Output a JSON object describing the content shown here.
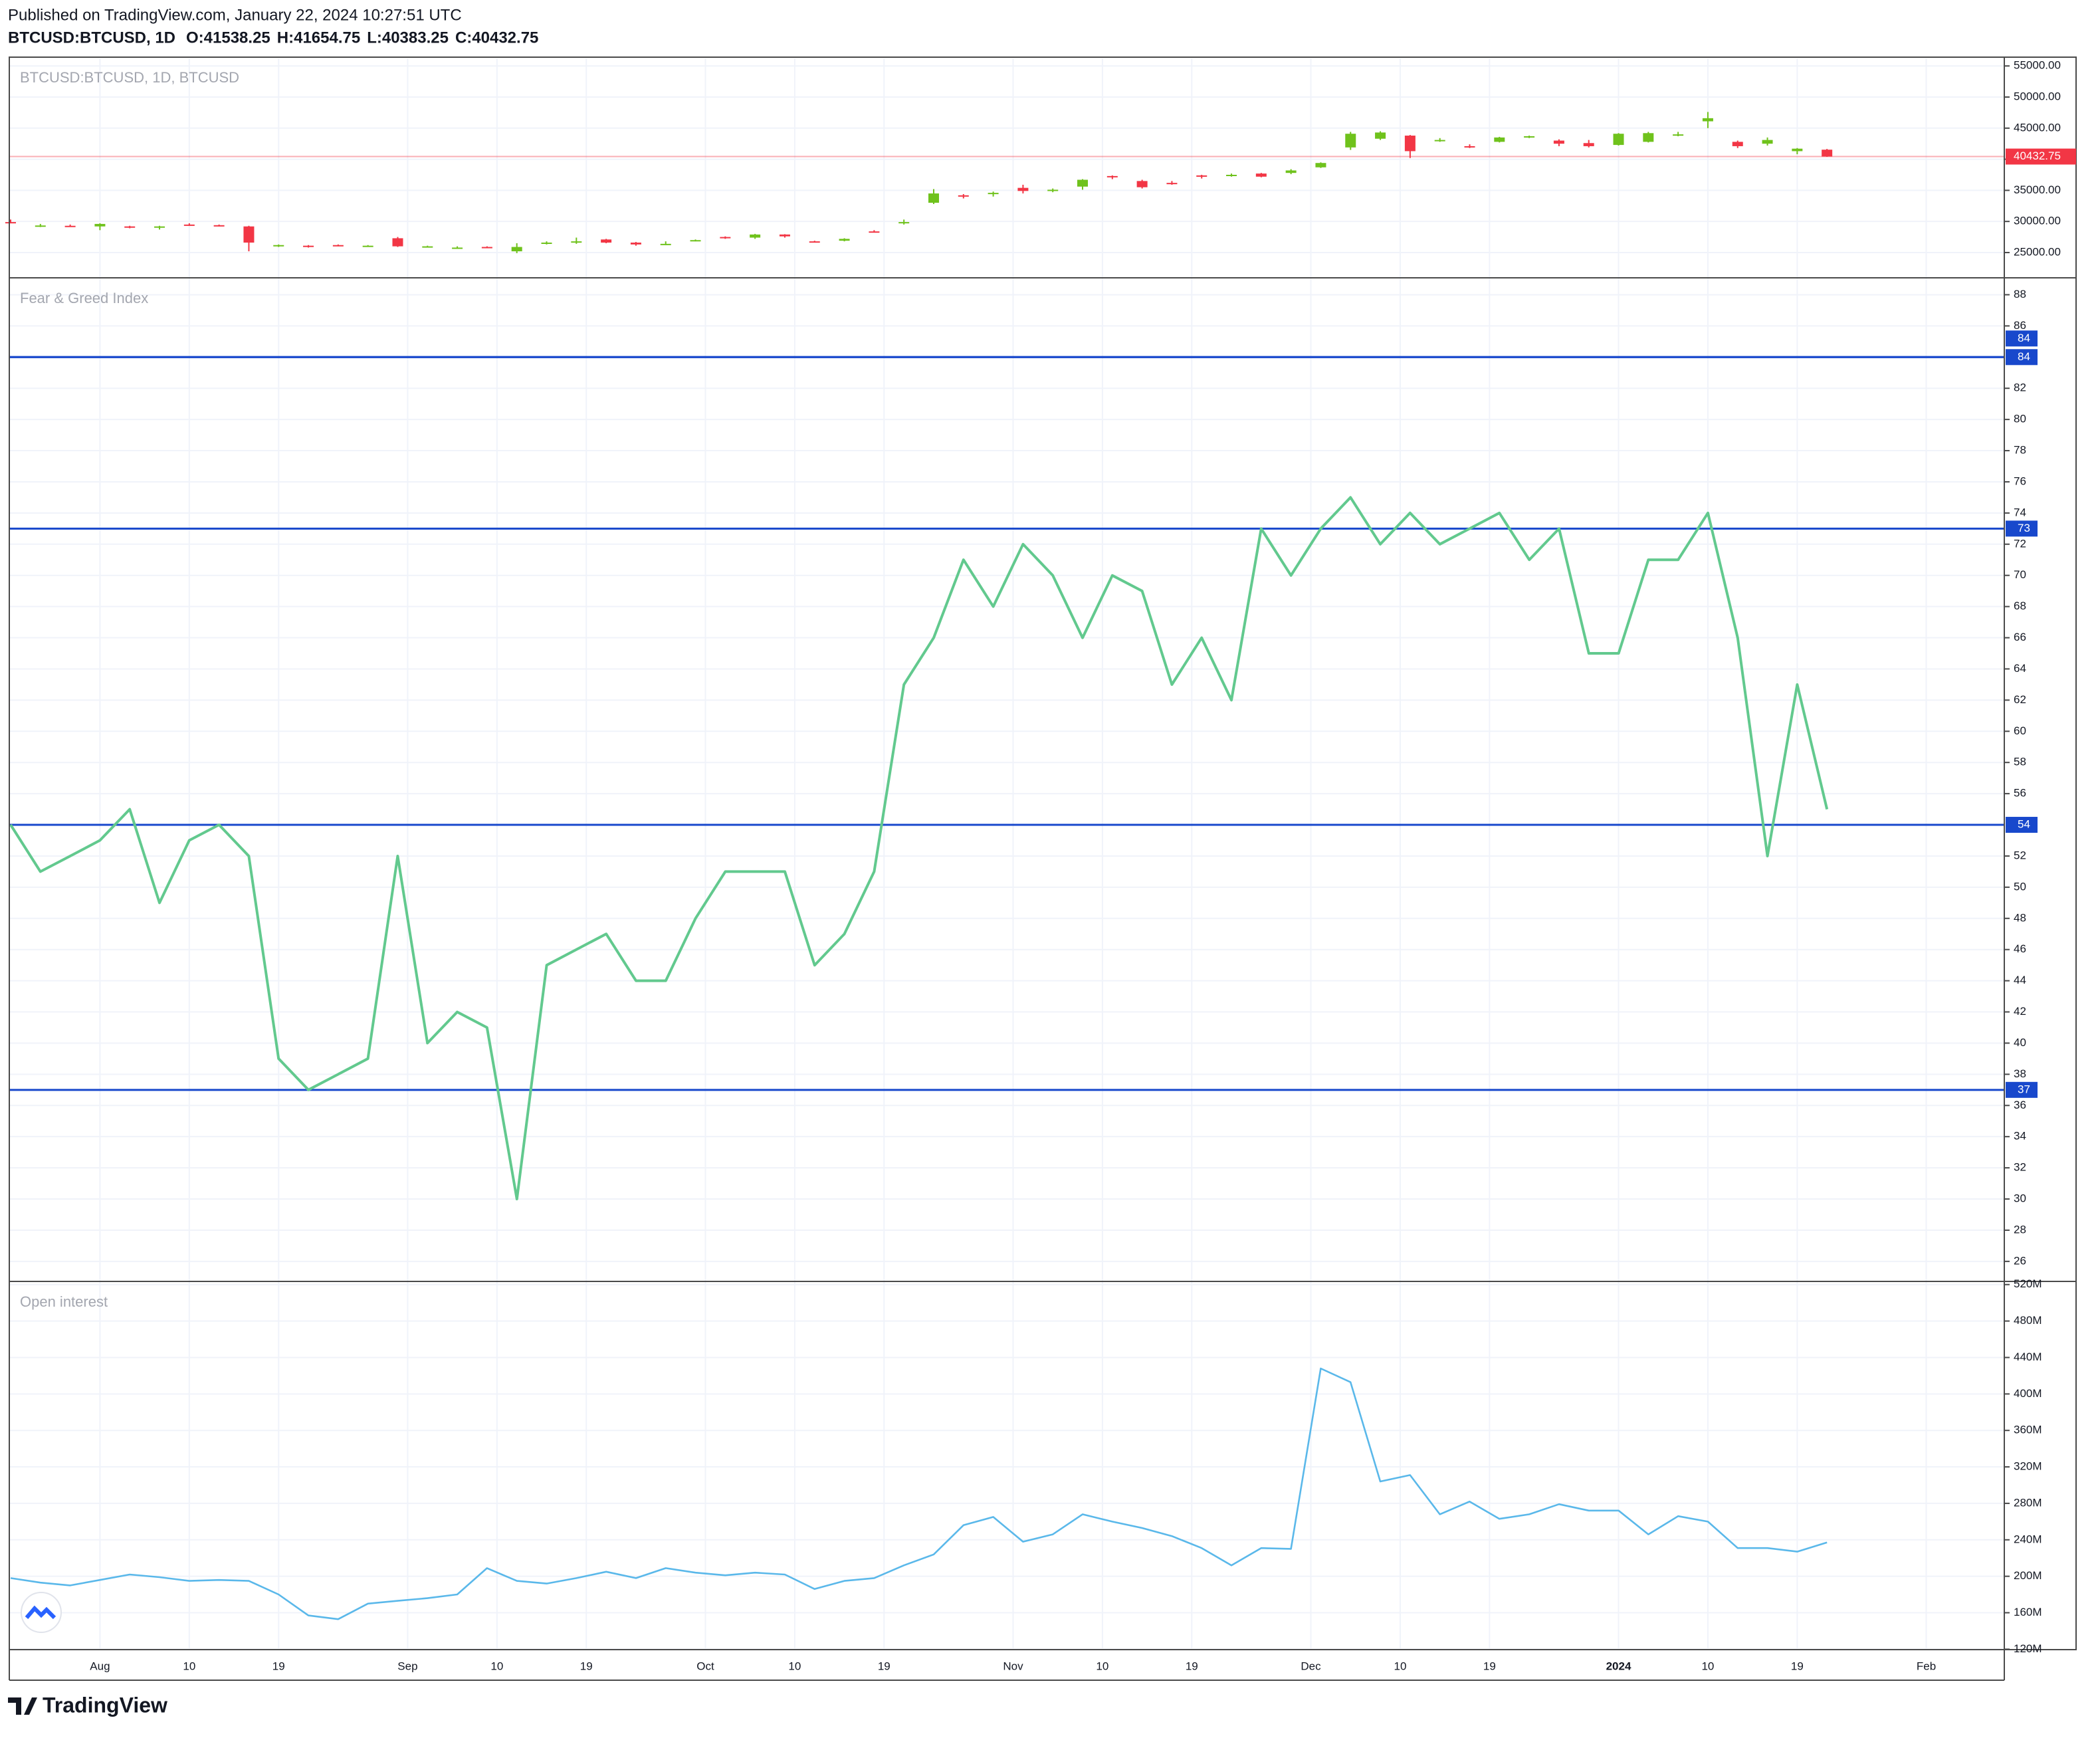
{
  "header": {
    "published": "Published on TradingView.com, January 22, 2024 10:27:51 UTC",
    "symbol": "BTCUSD:BTCUSD, 1D",
    "ohlc": [
      "O:41538.25",
      "H:41654.75",
      "L:40383.25",
      "C:40432.75"
    ]
  },
  "footer": "TradingView",
  "chart_data": [
    {
      "type": "candlestick",
      "title": "BTCUSD:BTCUSD, 1D, BTCUSD",
      "up_color": "#6fc21c",
      "down_color": "#f23645",
      "x": [
        "07-23",
        "07-26",
        "07-29",
        "08-01",
        "08-04",
        "08-07",
        "08-10",
        "08-13",
        "08-16",
        "08-19",
        "08-22",
        "08-25",
        "08-28",
        "08-31",
        "09-03",
        "09-06",
        "09-09",
        "09-12",
        "09-15",
        "09-18",
        "09-21",
        "09-24",
        "09-27",
        "09-30",
        "10-03",
        "10-06",
        "10-09",
        "10-12",
        "10-15",
        "10-18",
        "10-21",
        "10-24",
        "10-27",
        "10-30",
        "11-02",
        "11-05",
        "11-08",
        "11-11",
        "11-14",
        "11-17",
        "11-20",
        "11-23",
        "11-26",
        "11-29",
        "12-02",
        "12-05",
        "12-08",
        "12-11",
        "12-14",
        "12-17",
        "12-20",
        "12-23",
        "12-26",
        "12-29",
        "01-01",
        "01-04",
        "01-07",
        "01-10",
        "01-13",
        "01-16",
        "01-19",
        "01-22"
      ],
      "open": [
        29900,
        29200,
        29300,
        29200,
        29200,
        29100,
        29500,
        29400,
        29200,
        26100,
        26100,
        26200,
        26100,
        27300,
        25900,
        25800,
        25900,
        25200,
        26500,
        26600,
        27100,
        26600,
        26300,
        26900,
        27500,
        27400,
        27900,
        26800,
        26900,
        28400,
        29700,
        33000,
        34200,
        34500,
        35400,
        35000,
        35600,
        37300,
        36500,
        36200,
        37400,
        37300,
        37700,
        37800,
        38700,
        41900,
        43300,
        43800,
        42900,
        42100,
        42800,
        43600,
        43000,
        42600,
        42300,
        42800,
        43900,
        46100,
        42800,
        42500,
        41300,
        41538.25
      ],
      "high": [
        30300,
        29600,
        29500,
        29700,
        29300,
        29300,
        29700,
        29500,
        29300,
        26300,
        26200,
        26300,
        26200,
        27500,
        26100,
        26000,
        26000,
        26500,
        26800,
        27400,
        27200,
        26700,
        26800,
        27100,
        27600,
        28000,
        27950,
        26900,
        27300,
        28600,
        30300,
        35200,
        34400,
        34800,
        35900,
        35300,
        36800,
        37400,
        36700,
        36500,
        37500,
        37700,
        37800,
        38400,
        39500,
        44400,
        44500,
        43900,
        43400,
        42400,
        43600,
        43800,
        43200,
        43100,
        44200,
        44400,
        44400,
        47600,
        43000,
        43500,
        41800,
        41654.75
      ],
      "low": [
        29700,
        29100,
        29200,
        28600,
        28900,
        28700,
        29300,
        29200,
        25200,
        25900,
        25800,
        26000,
        26000,
        25900,
        25800,
        25700,
        25800,
        24900,
        26300,
        26400,
        26500,
        26100,
        26200,
        26800,
        27200,
        27200,
        27400,
        26600,
        26800,
        28200,
        29500,
        32800,
        33700,
        34000,
        34500,
        34700,
        35100,
        36800,
        35300,
        35900,
        36900,
        37200,
        37100,
        37600,
        38600,
        41500,
        43100,
        40200,
        42800,
        41800,
        42700,
        43400,
        42100,
        41900,
        42200,
        42700,
        43700,
        45000,
        41800,
        42200,
        40800,
        40383.25
      ],
      "close": [
        29800,
        29350,
        29250,
        29600,
        29100,
        29200,
        29400,
        29300,
        26600,
        26200,
        26050,
        26100,
        26100,
        26000,
        26000,
        25800,
        25850,
        25900,
        26600,
        26800,
        26600,
        26300,
        26400,
        27000,
        27450,
        27900,
        27600,
        26750,
        27200,
        28300,
        29900,
        34500,
        34000,
        34600,
        34900,
        35100,
        36700,
        37100,
        35500,
        36100,
        37200,
        37500,
        37200,
        38200,
        39400,
        44100,
        44300,
        41300,
        43100,
        41900,
        43500,
        43700,
        42500,
        42100,
        44100,
        44200,
        44000,
        46600,
        42100,
        43100,
        41700,
        40432.75
      ],
      "last_price": 40432.75,
      "ylim": [
        21150,
        56200
      ],
      "yticks": [
        {
          "value": 25000,
          "label": "25000.00"
        },
        {
          "value": 30000,
          "label": "30000.00"
        },
        {
          "value": 35000,
          "label": "35000.00"
        },
        {
          "value": 40000,
          "label": "40000.00"
        },
        {
          "value": 45000,
          "label": "45000.00"
        },
        {
          "value": 50000,
          "label": "50000.00"
        },
        {
          "value": 55000,
          "label": "55000.00"
        }
      ]
    },
    {
      "type": "line",
      "title": "Fear & Greed Index",
      "color": "#62c98e",
      "hline_color": "#1848cc",
      "x": [
        "07-23",
        "07-26",
        "07-29",
        "08-01",
        "08-04",
        "08-07",
        "08-10",
        "08-13",
        "08-16",
        "08-19",
        "08-22",
        "08-25",
        "08-28",
        "08-31",
        "09-03",
        "09-06",
        "09-09",
        "09-12",
        "09-15",
        "09-18",
        "09-21",
        "09-24",
        "09-27",
        "09-30",
        "10-03",
        "10-06",
        "10-09",
        "10-12",
        "10-15",
        "10-18",
        "10-21",
        "10-24",
        "10-27",
        "10-30",
        "11-02",
        "11-05",
        "11-08",
        "11-11",
        "11-14",
        "11-17",
        "11-20",
        "11-23",
        "11-26",
        "11-29",
        "12-02",
        "12-05",
        "12-08",
        "12-11",
        "12-14",
        "12-17",
        "12-20",
        "12-23",
        "12-26",
        "12-29",
        "01-01",
        "01-04",
        "01-07",
        "01-10",
        "01-13",
        "01-16",
        "01-19",
        "01-22"
      ],
      "values": [
        54,
        51,
        52,
        53,
        55,
        49,
        53,
        54,
        52,
        39,
        37,
        38,
        39,
        52,
        40,
        42,
        41,
        30,
        45,
        46,
        47,
        44,
        44,
        48,
        51,
        51,
        51,
        45,
        47,
        51,
        63,
        66,
        71,
        68,
        72,
        70,
        66,
        70,
        69,
        63,
        66,
        62,
        73,
        70,
        73,
        75,
        72,
        74,
        72,
        73,
        74,
        71,
        73,
        65,
        65,
        71,
        71,
        74,
        66,
        52,
        63,
        55
      ],
      "hlines": [
        84,
        84,
        73,
        54,
        37
      ],
      "ylim": [
        24.8,
        89
      ],
      "yticks": [
        26,
        28,
        30,
        32,
        34,
        36,
        38,
        40,
        42,
        44,
        46,
        48,
        50,
        52,
        56,
        58,
        60,
        62,
        64,
        66,
        68,
        70,
        72,
        74,
        76,
        78,
        80,
        82,
        86,
        88
      ]
    },
    {
      "type": "line",
      "title": "Open interest",
      "color": "#5ab8ea",
      "x": [
        "07-23",
        "07-26",
        "07-29",
        "08-01",
        "08-04",
        "08-07",
        "08-10",
        "08-13",
        "08-16",
        "08-19",
        "08-22",
        "08-25",
        "08-28",
        "08-31",
        "09-03",
        "09-06",
        "09-09",
        "09-12",
        "09-15",
        "09-18",
        "09-21",
        "09-24",
        "09-27",
        "09-30",
        "10-03",
        "10-06",
        "10-09",
        "10-12",
        "10-15",
        "10-18",
        "10-21",
        "10-24",
        "10-27",
        "10-30",
        "11-02",
        "11-05",
        "11-08",
        "11-11",
        "11-14",
        "11-17",
        "11-20",
        "11-23",
        "11-26",
        "11-29",
        "12-02",
        "12-05",
        "12-08",
        "12-11",
        "12-14",
        "12-17",
        "12-20",
        "12-23",
        "12-26",
        "12-29",
        "01-01",
        "01-04",
        "01-07",
        "01-10",
        "01-13",
        "01-16",
        "01-19",
        "01-22"
      ],
      "values": [
        198,
        193,
        190,
        196,
        202,
        199,
        195,
        196,
        195,
        180,
        157,
        153,
        170,
        173,
        176,
        180,
        209,
        195,
        192,
        198,
        205,
        198,
        209,
        204,
        201,
        204,
        202,
        186,
        195,
        198,
        212,
        224,
        256,
        265,
        238,
        246,
        268,
        260,
        253,
        244,
        231,
        212,
        231,
        230,
        428,
        413,
        304,
        311,
        268,
        282,
        263,
        268,
        279,
        272,
        272,
        246,
        266,
        260,
        231,
        231,
        227,
        237
      ],
      "ylim": [
        121,
        522
      ],
      "yticks": [
        {
          "value": 120,
          "label": "120M"
        },
        {
          "value": 160,
          "label": "160M"
        },
        {
          "value": 200,
          "label": "200M"
        },
        {
          "value": 240,
          "label": "240M"
        },
        {
          "value": 280,
          "label": "280M"
        },
        {
          "value": 320,
          "label": "320M"
        },
        {
          "value": 360,
          "label": "360M"
        },
        {
          "value": 400,
          "label": "400M"
        },
        {
          "value": 440,
          "label": "440M"
        },
        {
          "value": 480,
          "label": "480M"
        },
        {
          "value": 520,
          "label": "520M"
        }
      ],
      "xlim": [
        "07-23",
        "02-09"
      ],
      "xticks": [
        {
          "value": "08-01",
          "label": "Aug"
        },
        {
          "value": "08-10",
          "label": "10"
        },
        {
          "value": "08-19",
          "label": "19"
        },
        {
          "value": "09-01",
          "label": "Sep"
        },
        {
          "value": "09-10",
          "label": "10"
        },
        {
          "value": "09-19",
          "label": "19"
        },
        {
          "value": "10-01",
          "label": "Oct"
        },
        {
          "value": "10-10",
          "label": "10"
        },
        {
          "value": "10-19",
          "label": "19"
        },
        {
          "value": "11-01",
          "label": "Nov"
        },
        {
          "value": "11-10",
          "label": "10"
        },
        {
          "value": "11-19",
          "label": "19"
        },
        {
          "value": "12-01",
          "label": "Dec"
        },
        {
          "value": "12-10",
          "label": "10"
        },
        {
          "value": "12-19",
          "label": "19"
        },
        {
          "value": "01-01",
          "label": "2024"
        },
        {
          "value": "01-10",
          "label": "10"
        },
        {
          "value": "01-19",
          "label": "19"
        },
        {
          "value": "02-01",
          "label": "Feb"
        }
      ]
    }
  ]
}
